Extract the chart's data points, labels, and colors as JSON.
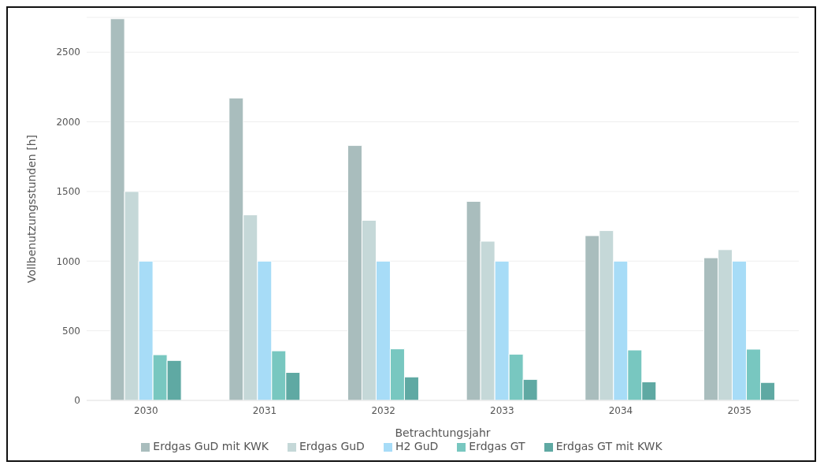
{
  "chart_data": {
    "type": "bar",
    "xlabel": "Betrachtungsjahr",
    "ylabel": "Vollbenutzungsstunden [h]",
    "categories": [
      "2030",
      "2031",
      "2032",
      "2033",
      "2034",
      "2035"
    ],
    "series": [
      {
        "name": "Erdgas GuD mit KWK",
        "color": "#a9bdbd",
        "values": [
          2740,
          2171,
          1830,
          1429,
          1183,
          1024
        ]
      },
      {
        "name": "Erdgas GuD",
        "color": "#c5d8d8",
        "values": [
          1500,
          1332,
          1293,
          1143,
          1219,
          1082
        ]
      },
      {
        "name": "H2 GuD",
        "color": "#a7dcf7",
        "values": [
          1000,
          1000,
          1000,
          1000,
          1000,
          1000
        ]
      },
      {
        "name": "Erdgas GT",
        "color": "#78c7c0",
        "values": [
          328,
          356,
          370,
          332,
          362,
          368
        ]
      },
      {
        "name": "Erdgas GT mit KWK",
        "color": "#5fa9a3",
        "values": [
          287,
          201,
          169,
          151,
          133,
          129
        ]
      }
    ],
    "ylim": [
      0,
      2750
    ],
    "yticks": [
      0,
      500,
      1000,
      1500,
      2000,
      2500
    ],
    "grid": "y",
    "legend": "bottom"
  }
}
